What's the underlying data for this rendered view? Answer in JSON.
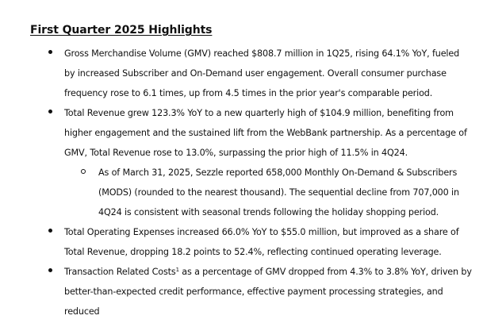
{
  "heading": "First Quarter 2025 Highlights",
  "bullets": [
    {
      "text": "Gross Merchandise Volume (GMV) reached $808.7 million in 1Q25, rising 64.1% YoY, fueled by increased Subscriber and On-Demand user engagement. Overall consumer purchase frequency rose to 6.1 times, up from 4.5 times in the prior year's comparable period."
    },
    {
      "text": "Total Revenue grew 123.3% YoY to a new quarterly high of $104.9 million, benefiting from higher engagement and the sustained lift from the WebBank partnership. As a percentage of GMV, Total Revenue rose to 13.0%, surpassing the prior high of 11.5% in 4Q24.",
      "sub": "As of March 31, 2025, Sezzle reported 658,000 Monthly On-Demand & Subscribers (MODS) (rounded to the nearest thousand). The sequential decline from 707,000 in 4Q24 is consistent with seasonal trends following the holiday shopping period."
    },
    {
      "text": "Total Operating Expenses increased 66.0% YoY to $55.0 million, but improved as a share of Total Revenue, dropping 18.2 points to 52.4%, reflecting continued operating leverage."
    },
    {
      "text_pre": "Transaction Related Costs",
      "footnote": "1",
      "text_post": " as a percentage of GMV dropped from 4.3% to 3.8% YoY, driven by better-than-expected credit performance, effective payment processing strategies, and reduced"
    }
  ]
}
